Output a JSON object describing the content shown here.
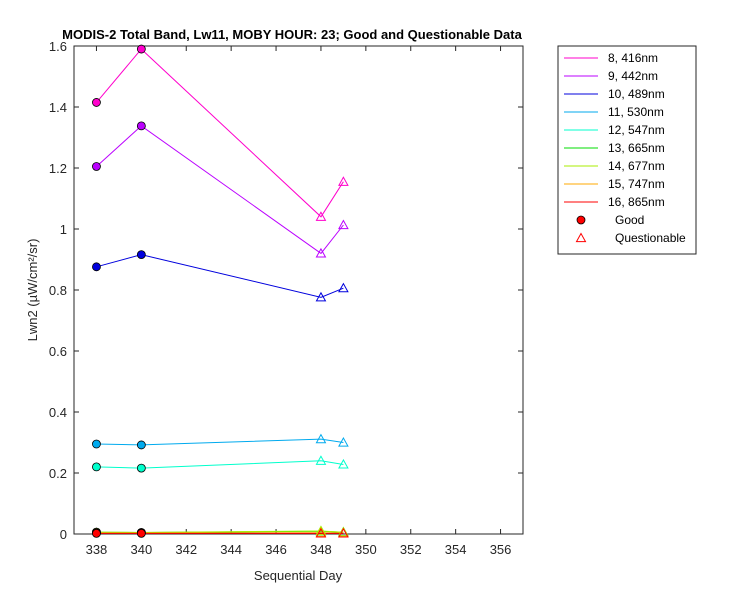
{
  "chart_data": {
    "type": "line",
    "title": "MODIS-2 Total Band, Lw11, MOBY HOUR: 23;  Good and Questionable Data",
    "xlabel": "Sequential Day",
    "ylabel": "Lwn2 (µW/cm²/sr)",
    "xlim": [
      337,
      357
    ],
    "ylim": [
      0,
      1.6
    ],
    "xticks": [
      338,
      340,
      342,
      344,
      346,
      348,
      350,
      352,
      354,
      356
    ],
    "yticks": [
      0,
      0.2,
      0.4,
      0.6,
      0.8,
      1,
      1.2,
      1.4,
      1.6
    ],
    "ytick_labels": [
      "0",
      "0.2",
      "0.4",
      "0.6",
      "0.8",
      "1",
      "1.2",
      "1.4",
      "1.6"
    ],
    "grid": false,
    "legend_position": "outside-top-right",
    "legend_markers": [
      {
        "name": "Good",
        "marker": "circle",
        "color": "#ff0000"
      },
      {
        "name": "Questionable",
        "marker": "triangle",
        "color": "#ff0000"
      }
    ],
    "x": [
      338,
      340,
      348,
      349
    ],
    "quality": [
      "good",
      "good",
      "questionable",
      "questionable"
    ],
    "series": [
      {
        "name": "8, 416nm",
        "color": "#ff00cc",
        "values": [
          1.415,
          1.59,
          1.04,
          1.155
        ]
      },
      {
        "name": "9, 442nm",
        "color": "#bb00ff",
        "values": [
          1.205,
          1.338,
          0.92,
          1.013
        ]
      },
      {
        "name": "10, 489nm",
        "color": "#0000dd",
        "values": [
          0.876,
          0.916,
          0.776,
          0.806
        ]
      },
      {
        "name": "11, 530nm",
        "color": "#00aaee",
        "values": [
          0.295,
          0.292,
          0.311,
          0.3
        ]
      },
      {
        "name": "12, 547nm",
        "color": "#00ffcc",
        "values": [
          0.22,
          0.216,
          0.24,
          0.228
        ]
      },
      {
        "name": "13, 665nm",
        "color": "#00dd00",
        "values": [
          0.006,
          0.005,
          0.009,
          0.006
        ]
      },
      {
        "name": "14, 677nm",
        "color": "#aaee00",
        "values": [
          0.006,
          0.005,
          0.01,
          0.006
        ]
      },
      {
        "name": "15, 747nm",
        "color": "#ffaa00",
        "values": [
          0.003,
          0.003,
          0.004,
          0.003
        ]
      },
      {
        "name": "16, 865nm",
        "color": "#ff0000",
        "values": [
          0.002,
          0.002,
          0.002,
          0.002
        ]
      }
    ]
  }
}
